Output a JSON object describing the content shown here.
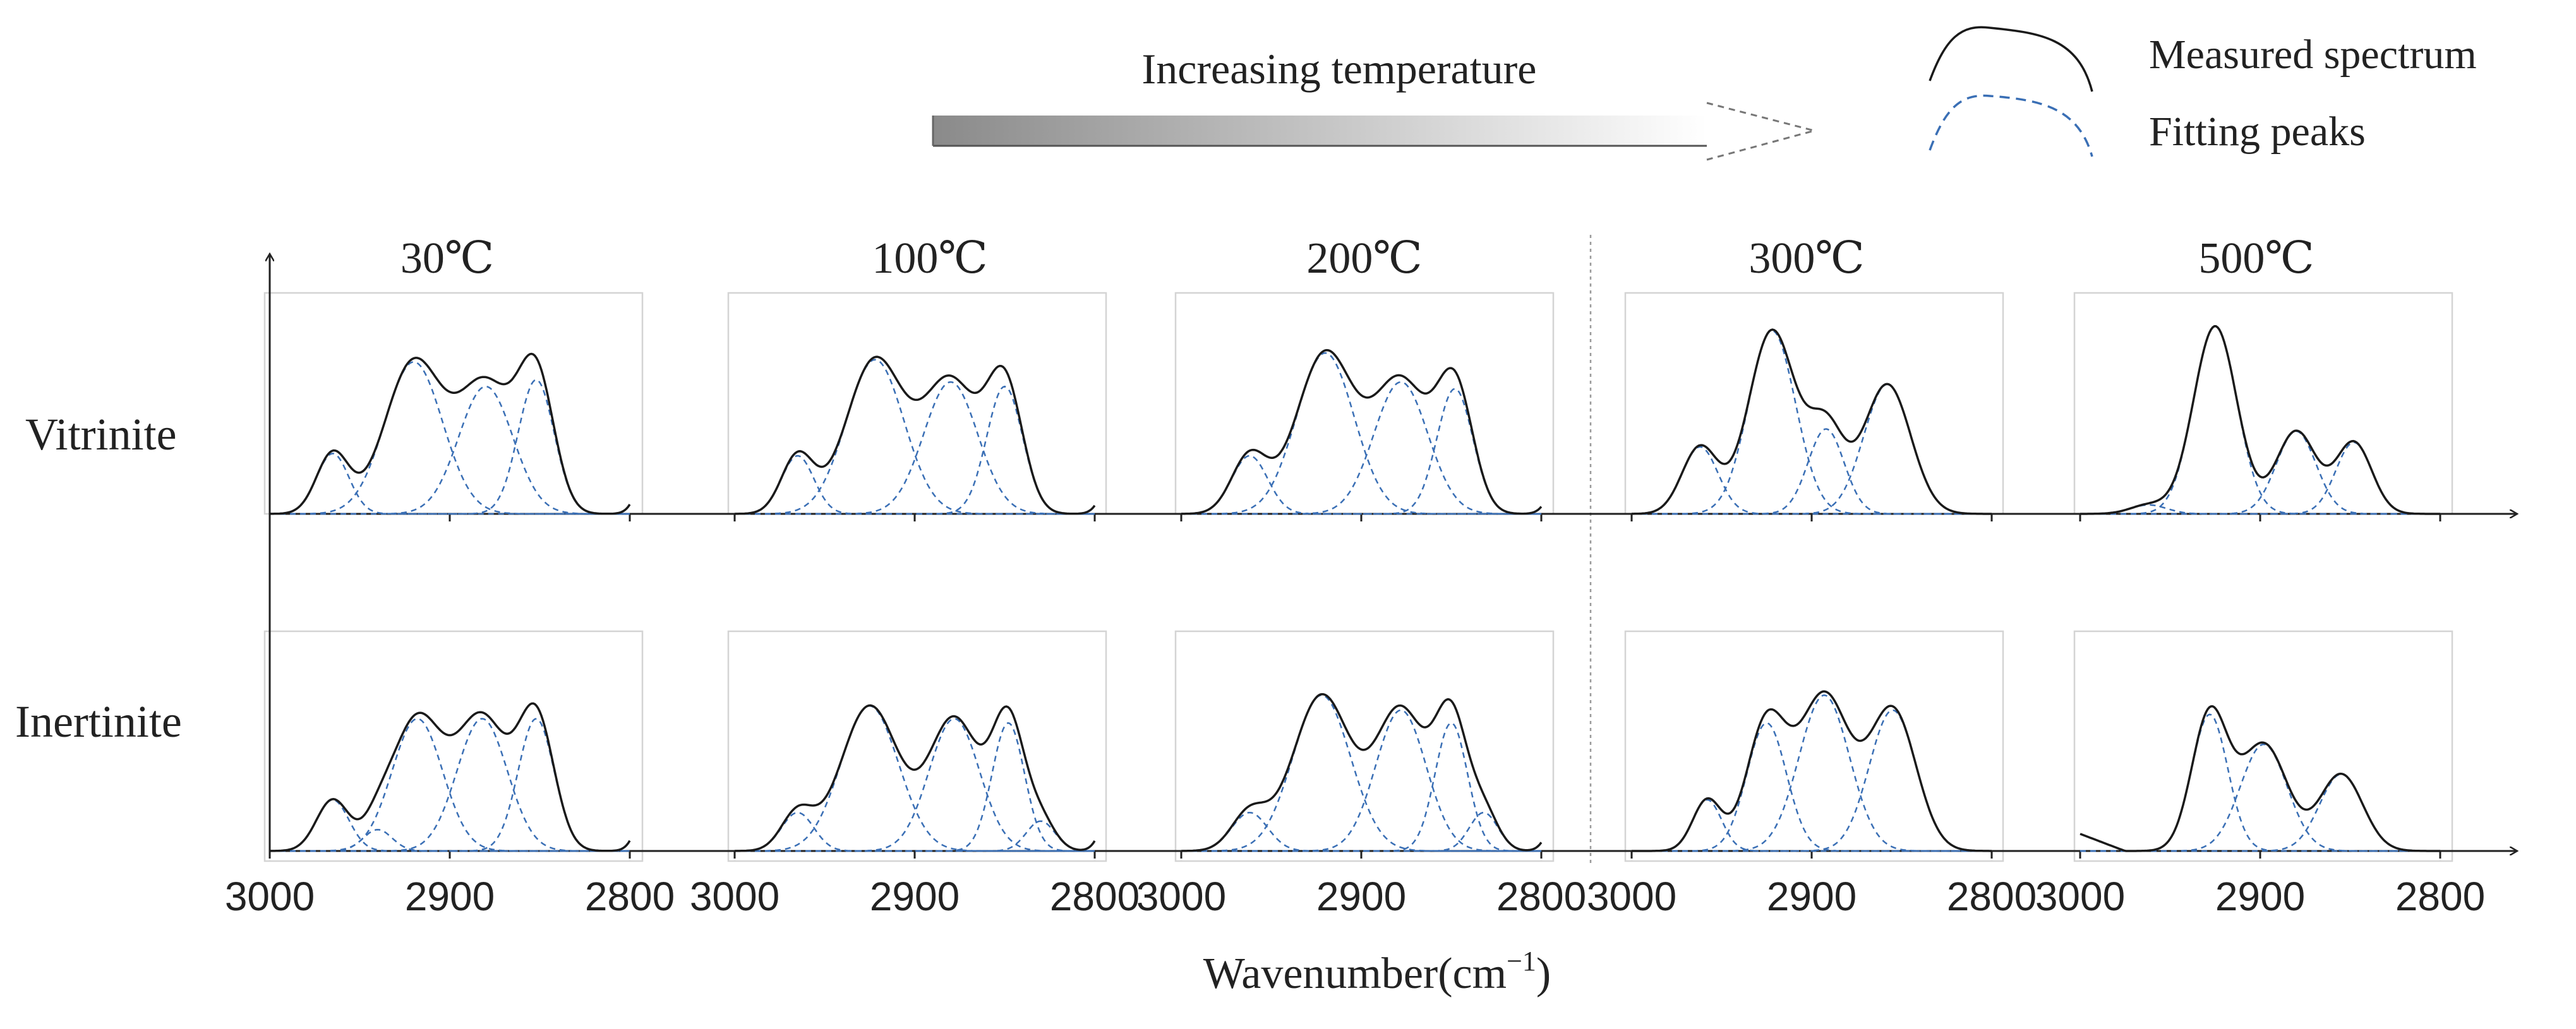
{
  "chart_data": {
    "type": "line",
    "title": "",
    "arrow_label": "Increasing temperature",
    "xlabel_main": "Wavenumber(cm",
    "xlabel_sup": "−1",
    "xlabel_close": ")",
    "x_range": [
      3000,
      2800
    ],
    "x_ticks": [
      "3000",
      "2900",
      "2800"
    ],
    "legend": {
      "position": "top-right",
      "measured": "Measured spectrum",
      "fitting": "Fitting peaks"
    },
    "rows": [
      "Vitrinite",
      "Inertinite"
    ],
    "temperatures": [
      "30℃",
      "100℃",
      "200℃",
      "300℃",
      "500℃"
    ],
    "colors": {
      "measured": "#1a1a1a",
      "fitting": "#3a6fb5",
      "arrow_dark": "#8a8a8a"
    },
    "panels": [
      {
        "row": "Vitrinite",
        "temp": "30℃",
        "peaks": [
          {
            "center": 2965,
            "height": 0.27,
            "width": 9
          },
          {
            "center": 2920,
            "height": 0.68,
            "width": 16
          },
          {
            "center": 2880,
            "height": 0.57,
            "width": 15
          },
          {
            "center": 2852,
            "height": 0.6,
            "width": 10
          }
        ],
        "edge": {
          "center": 2785,
          "height": 0.42,
          "width": 7
        }
      },
      {
        "row": "Vitrinite",
        "temp": "100℃",
        "peaks": [
          {
            "center": 2965,
            "height": 0.26,
            "width": 9
          },
          {
            "center": 2922,
            "height": 0.69,
            "width": 16
          },
          {
            "center": 2880,
            "height": 0.59,
            "width": 15
          },
          {
            "center": 2850,
            "height": 0.57,
            "width": 10
          }
        ],
        "edge": {
          "center": 2785,
          "height": 0.37,
          "width": 7
        }
      },
      {
        "row": "Vitrinite",
        "temp": "200℃",
        "peaks": [
          {
            "center": 2962,
            "height": 0.26,
            "width": 10
          },
          {
            "center": 2920,
            "height": 0.72,
            "width": 16
          },
          {
            "center": 2878,
            "height": 0.59,
            "width": 15
          },
          {
            "center": 2848,
            "height": 0.56,
            "width": 10
          }
        ],
        "edge": {
          "center": 2785,
          "height": 0.32,
          "width": 7
        }
      },
      {
        "row": "Vitrinite",
        "temp": "300℃",
        "peaks": [
          {
            "center": 2962,
            "height": 0.3,
            "width": 10
          },
          {
            "center": 2922,
            "height": 0.82,
            "width": 13
          },
          {
            "center": 2892,
            "height": 0.38,
            "width": 10
          },
          {
            "center": 2858,
            "height": 0.58,
            "width": 13
          }
        ],
        "edge": null
      },
      {
        "row": "Vitrinite",
        "temp": "500℃",
        "peaks": [
          {
            "center": 2962,
            "height": 0.04,
            "width": 10
          },
          {
            "center": 2925,
            "height": 0.84,
            "width": 12
          },
          {
            "center": 2880,
            "height": 0.37,
            "width": 11
          },
          {
            "center": 2848,
            "height": 0.32,
            "width": 10
          }
        ],
        "edge": null
      },
      {
        "row": "Inertinite",
        "temp": "30℃",
        "peaks": [
          {
            "center": 2965,
            "height": 0.24,
            "width": 9
          },
          {
            "center": 2940,
            "height": 0.1,
            "width": 8
          },
          {
            "center": 2918,
            "height": 0.62,
            "width": 14
          },
          {
            "center": 2882,
            "height": 0.62,
            "width": 14
          },
          {
            "center": 2852,
            "height": 0.62,
            "width": 10
          }
        ],
        "edge": {
          "center": 2785,
          "height": 0.48,
          "width": 7
        }
      },
      {
        "row": "Inertinite",
        "temp": "100℃",
        "peaks": [
          {
            "center": 2965,
            "height": 0.18,
            "width": 9
          },
          {
            "center": 2925,
            "height": 0.68,
            "width": 16
          },
          {
            "center": 2878,
            "height": 0.62,
            "width": 14
          },
          {
            "center": 2848,
            "height": 0.6,
            "width": 9
          },
          {
            "center": 2830,
            "height": 0.14,
            "width": 8
          }
        ],
        "edge": {
          "center": 2785,
          "height": 0.47,
          "width": 7
        }
      },
      {
        "row": "Inertinite",
        "temp": "200℃",
        "peaks": [
          {
            "center": 2962,
            "height": 0.18,
            "width": 10
          },
          {
            "center": 2922,
            "height": 0.73,
            "width": 16
          },
          {
            "center": 2878,
            "height": 0.66,
            "width": 14
          },
          {
            "center": 2850,
            "height": 0.6,
            "width": 9
          },
          {
            "center": 2832,
            "height": 0.18,
            "width": 8
          }
        ],
        "edge": {
          "center": 2785,
          "height": 0.4,
          "width": 7
        }
      },
      {
        "row": "Inertinite",
        "temp": "300℃",
        "peaks": [
          {
            "center": 2958,
            "height": 0.24,
            "width": 8
          },
          {
            "center": 2925,
            "height": 0.6,
            "width": 11
          },
          {
            "center": 2893,
            "height": 0.73,
            "width": 14
          },
          {
            "center": 2855,
            "height": 0.66,
            "width": 13
          }
        ],
        "edge": null
      },
      {
        "row": "Inertinite",
        "temp": "500℃",
        "peaks": [
          {
            "center": 2928,
            "height": 0.64,
            "width": 10
          },
          {
            "center": 2898,
            "height": 0.5,
            "width": 13
          },
          {
            "center": 2855,
            "height": 0.36,
            "width": 12
          }
        ],
        "edge": null,
        "leading_decline": true
      }
    ]
  }
}
